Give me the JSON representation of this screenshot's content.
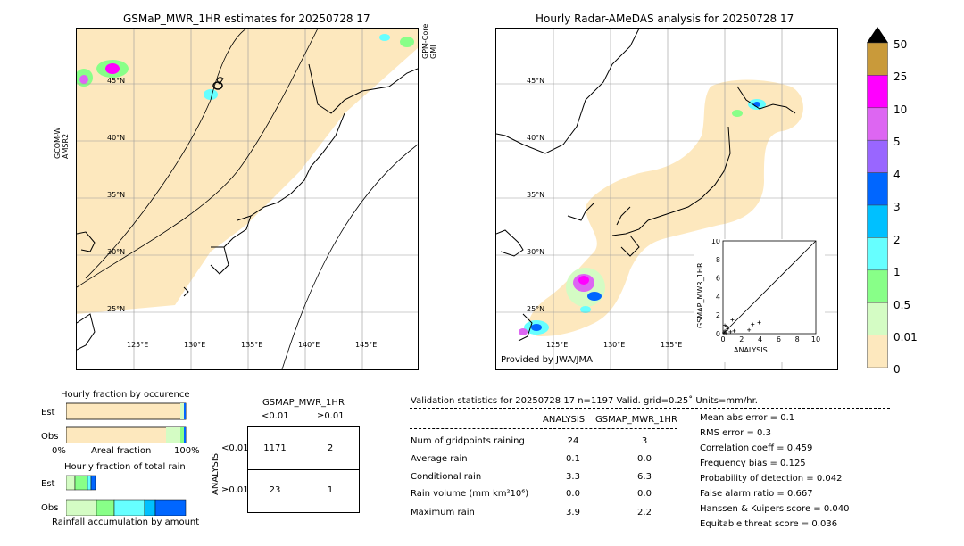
{
  "left_map": {
    "title": "GSMaP_MWR_1HR estimates for 20250728 17",
    "lat_labels": [
      "45°N",
      "40°N",
      "35°N",
      "30°N",
      "25°N"
    ],
    "lon_labels": [
      "125°E",
      "130°E",
      "135°E",
      "140°E",
      "145°E"
    ],
    "left_sat_label": "GCOM-W\nAMSR2",
    "right_sat_label": "GPM-Core\nGMI"
  },
  "right_map": {
    "title": "Hourly Radar-AMeDAS analysis for 20250728 17",
    "lat_labels": [
      "45°N",
      "40°N",
      "35°N",
      "30°N",
      "25°N"
    ],
    "lon_labels": [
      "125°E",
      "130°E",
      "135°E"
    ],
    "credit": "Provided by JWA/JMA"
  },
  "colorbar": {
    "labels": [
      "50",
      "25",
      "10",
      "5",
      "4",
      "3",
      "2",
      "1",
      "0.5",
      "0.01",
      "0"
    ],
    "colors": [
      "#c99a3a",
      "#ff00ff",
      "#dd66f2",
      "#9966ff",
      "#0066ff",
      "#00c0ff",
      "#66ffff",
      "#88ff88",
      "#d4fcc4",
      "#fde8be"
    ]
  },
  "chart_data": [
    {
      "type": "scatter",
      "xlabel": "ANALYSIS",
      "ylabel": "GSMAP_MWR_1HR",
      "xlim": [
        0,
        10
      ],
      "ylim": [
        0,
        10
      ],
      "xticks": [
        "0",
        "2",
        "4",
        "6",
        "8",
        "10"
      ],
      "yticks": [
        "0",
        "2",
        "4",
        "6",
        "8",
        "10"
      ],
      "x": [
        0.1,
        0.2,
        0.3,
        0.5,
        0.8,
        1.0,
        0.4,
        2.8,
        3.2,
        3.9,
        1.2,
        0.2
      ],
      "y": [
        0.1,
        0.3,
        0.1,
        0.5,
        0.2,
        1.5,
        0.8,
        0.4,
        1.0,
        1.2,
        0.3,
        0.9
      ]
    },
    {
      "type": "bar",
      "title": "Hourly fraction by occurence",
      "categories": [
        "Est",
        "Obs"
      ],
      "xlabel": "Areal fraction",
      "x_ticks": [
        "0%",
        "100%"
      ]
    },
    {
      "type": "bar",
      "title": "Hourly fraction of total rain",
      "categories": [
        "Est",
        "Obs"
      ],
      "xlabel": "Rainfall accumulation by amount"
    }
  ],
  "contingency": {
    "title": "GSMAP_MWR_1HR",
    "col_headers": [
      "<0.01",
      "≥0.01"
    ],
    "axis_label": "ANALYSIS",
    "row_headers": [
      "<0.01",
      "≥0.01"
    ],
    "cells": [
      [
        "1171",
        "2"
      ],
      [
        "23",
        "1"
      ]
    ]
  },
  "validation": {
    "header": "Validation statistics for 20250728 17  n=1197 Valid. grid=0.25˚ Units=mm/hr.",
    "col_analysis": "ANALYSIS",
    "col_gsmap": "GSMAP_MWR_1HR",
    "rows": [
      {
        "label": "Num of gridpoints raining",
        "analysis": "24",
        "gsmap": "3"
      },
      {
        "label": "Average rain",
        "analysis": "0.1",
        "gsmap": "0.0"
      },
      {
        "label": "Conditional rain",
        "analysis": "3.3",
        "gsmap": "6.3"
      },
      {
        "label": "Rain volume (mm km²10⁶)",
        "analysis": "0.0",
        "gsmap": "0.0"
      },
      {
        "label": "Maximum rain",
        "analysis": "3.9",
        "gsmap": "2.2"
      }
    ],
    "scores": [
      "Mean abs error =    0.1",
      "RMS error =    0.3",
      "Correlation coeff =  0.459",
      "Frequency bias =  0.125",
      "Probability of detection =  0.042",
      "False alarm ratio =  0.667",
      "Hanssen & Kuipers score =  0.040",
      "Equitable threat score =  0.036"
    ]
  }
}
